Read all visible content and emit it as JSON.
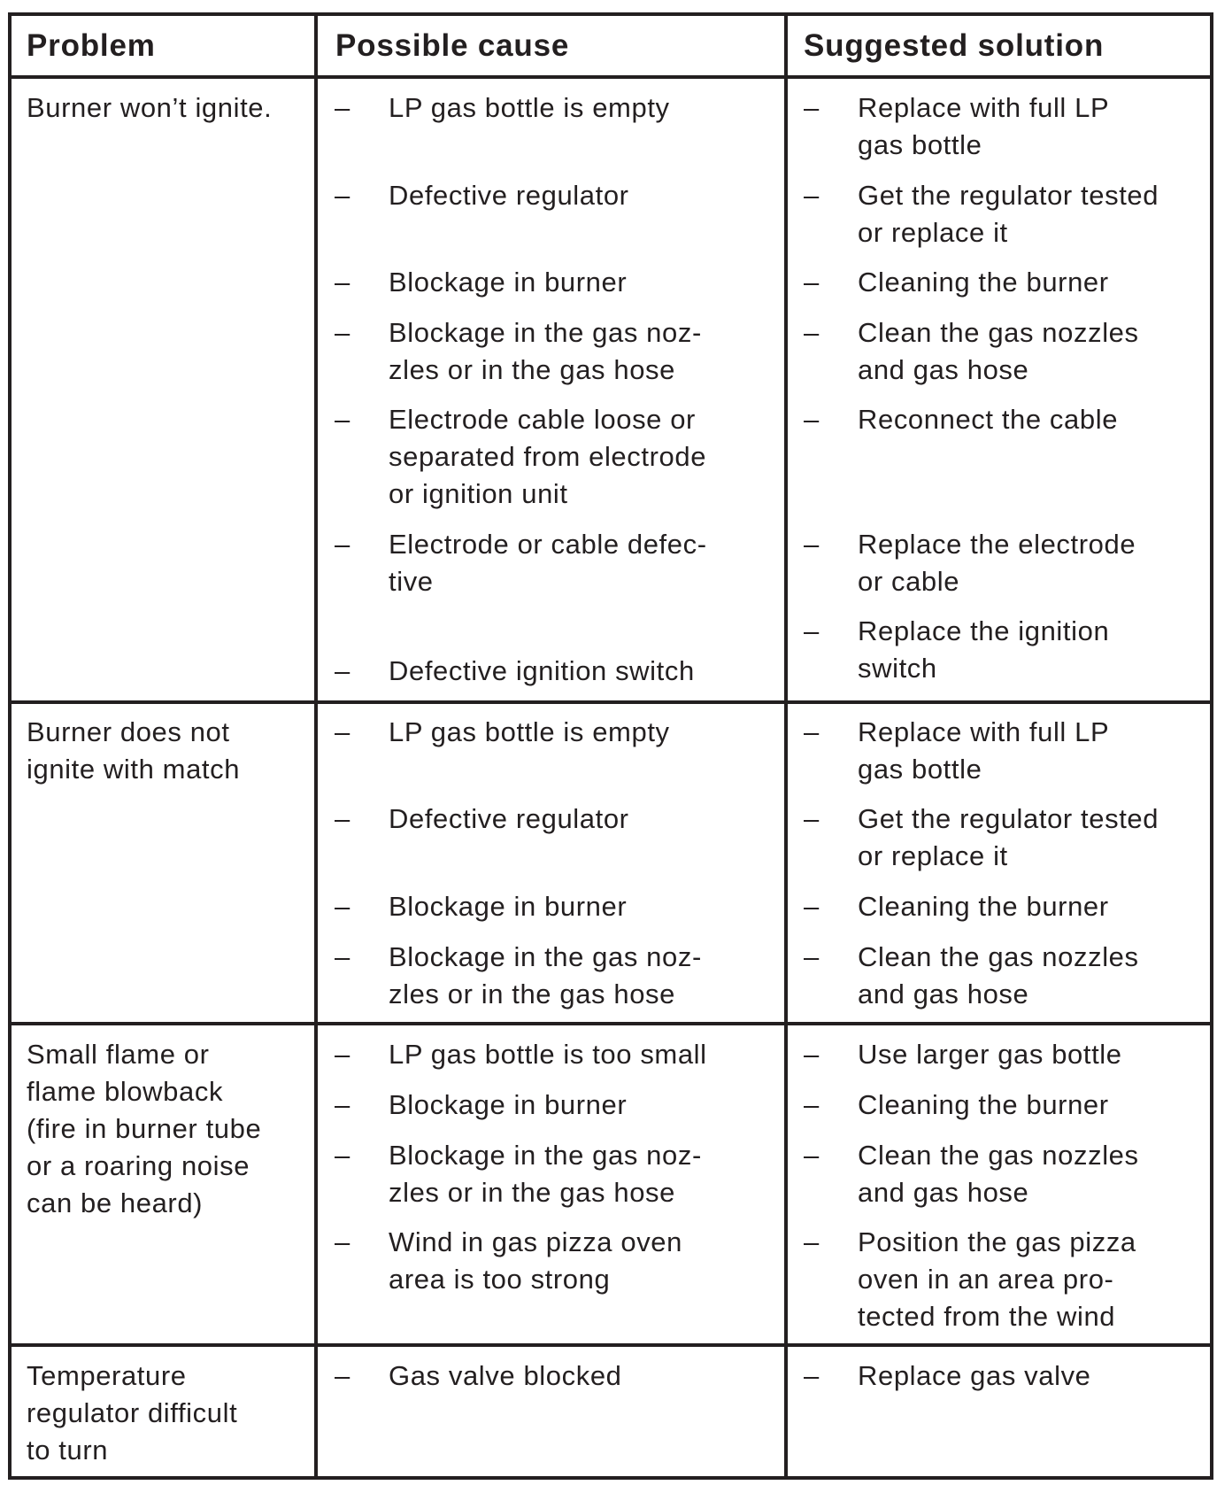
{
  "header": {
    "problem": "Problem",
    "cause": "Possible cause",
    "solution": "Suggested solution"
  },
  "bullet": "–",
  "rows": [
    {
      "problem": "Burner won’t ignite.",
      "causes": [
        "LP gas bottle is empty",
        "Defective regulator",
        "Blockage in burner",
        "Blockage in the gas noz-\nzles or in the gas hose",
        "Electrode cable loose or\nseparated from electrode\nor ignition unit",
        "Electrode or cable defec-\ntive",
        "Defective ignition switch"
      ],
      "solutions": [
        "Replace with full LP\ngas bottle",
        "Get the regulator tested\nor replace it",
        "Cleaning the burner",
        "Clean the gas nozzles\nand gas hose",
        "Reconnect the cable",
        "Replace the electrode\nor cable",
        "Replace the ignition\nswitch"
      ]
    },
    {
      "problem": "Burner does not\nignite with match",
      "causes": [
        "LP gas bottle is empty",
        "Defective regulator",
        "Blockage in burner",
        "Blockage in the gas noz-\nzles or in the gas hose"
      ],
      "solutions": [
        "Replace with full LP\ngas bottle",
        "Get the regulator tested\nor replace it",
        "Cleaning the burner",
        "Clean the gas nozzles\nand gas hose"
      ]
    },
    {
      "problem": "Small flame or\nflame blowback\n(fire in burner tube\nor a roaring noise\ncan be heard)",
      "causes": [
        "LP gas bottle is too small",
        "Blockage in burner",
        "Blockage in the gas noz-\nzles or in the gas hose",
        "Wind in gas pizza oven\narea is too strong"
      ],
      "solutions": [
        "Use larger gas bottle",
        "Cleaning the burner",
        "Clean the gas nozzles\nand gas hose",
        "Position the gas pizza\noven in an area pro-\ntected from the wind"
      ]
    },
    {
      "problem": "Temperature\nregulator difficult\nto turn",
      "causes": [
        "Gas valve blocked"
      ],
      "solutions": [
        "Replace gas valve"
      ]
    }
  ]
}
